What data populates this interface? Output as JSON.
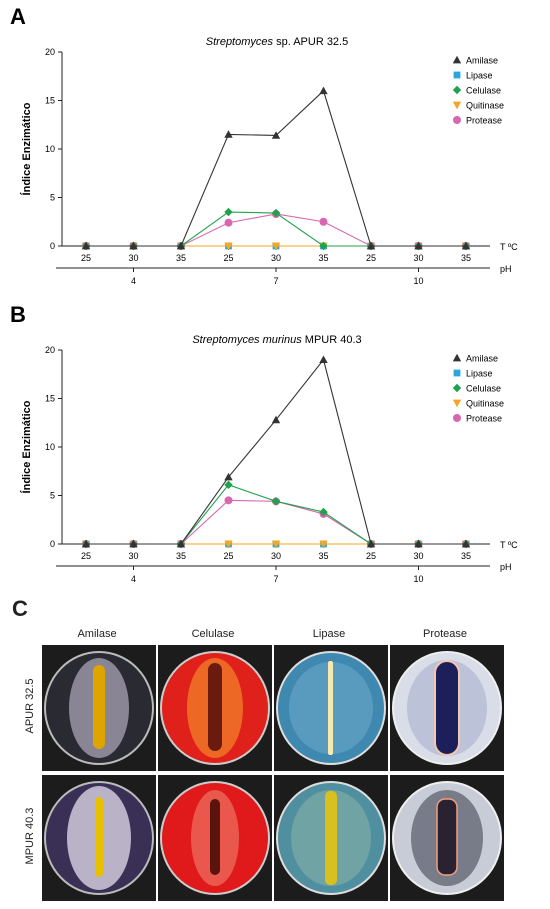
{
  "panels": [
    {
      "letter": "A",
      "title_italic": "Streptomyces",
      "title_rest": " sp. APUR 32.5",
      "ylabel": "Índice Enzimático",
      "t_label": "T ºC",
      "ph_label": "pH",
      "yticks": [
        "0",
        "5",
        "10",
        "15",
        "20"
      ],
      "ylim": [
        0,
        20
      ],
      "x_ticks": [
        "25",
        "30",
        "35",
        "25",
        "30",
        "35",
        "25",
        "30",
        "35"
      ],
      "ph_groups": [
        "4",
        "7",
        "10"
      ]
    },
    {
      "letter": "B",
      "title_italic": "Streptomyces murinus",
      "title_rest": " MPUR 40.3",
      "ylabel": "Índice Enzimático",
      "t_label": "T ºC",
      "ph_label": "pH",
      "yticks": [
        "0",
        "5",
        "10",
        "15",
        "20"
      ],
      "ylim": [
        0,
        20
      ],
      "x_ticks": [
        "25",
        "30",
        "35",
        "25",
        "30",
        "35",
        "25",
        "30",
        "35"
      ],
      "ph_groups": [
        "4",
        "7",
        "10"
      ]
    }
  ],
  "legend": [
    "Amilase",
    "Lipase",
    "Celulase",
    "Quitinase",
    "Protease"
  ],
  "colors": {
    "Amilase": "#333333",
    "Lipase": "#29a8d8",
    "Celulase": "#1fa34a",
    "Quitinase": "#f5a623",
    "Protease": "#d966b0"
  },
  "chart_data": [
    {
      "type": "line",
      "title": "Streptomyces sp. APUR 32.5",
      "ylabel": "Índice Enzimático",
      "categories": [
        "4 / 25",
        "4 / 30",
        "4 / 35",
        "7 / 25",
        "7 / 30",
        "7 / 35",
        "10 / 25",
        "10 / 30",
        "10 / 35"
      ],
      "ylim": [
        0,
        20
      ],
      "series": [
        {
          "name": "Amilase",
          "values": [
            0,
            0,
            0,
            11.5,
            11.4,
            16,
            0,
            0,
            0
          ]
        },
        {
          "name": "Lipase",
          "values": [
            0,
            0,
            0,
            0,
            0,
            0,
            0,
            0,
            0
          ]
        },
        {
          "name": "Celulase",
          "values": [
            0,
            0,
            0,
            3.5,
            3.4,
            0,
            0,
            0,
            0
          ]
        },
        {
          "name": "Quitinase",
          "values": [
            0,
            0,
            0,
            0,
            0,
            0,
            0,
            0,
            0
          ]
        },
        {
          "name": "Protease",
          "values": [
            0,
            0,
            0,
            2.4,
            3.3,
            2.5,
            0,
            0,
            0
          ]
        }
      ]
    },
    {
      "type": "line",
      "title": "Streptomyces murinus MPUR 40.3",
      "ylabel": "Índice Enzimático",
      "categories": [
        "4 / 25",
        "4 / 30",
        "4 / 35",
        "7 / 25",
        "7 / 30",
        "7 / 35",
        "10 / 25",
        "10 / 30",
        "10 / 35"
      ],
      "ylim": [
        0,
        20
      ],
      "series": [
        {
          "name": "Amilase",
          "values": [
            0,
            0,
            0,
            6.9,
            12.8,
            19,
            0,
            0,
            0
          ]
        },
        {
          "name": "Lipase",
          "values": [
            0,
            0,
            0,
            0,
            0,
            0,
            0,
            0,
            0
          ]
        },
        {
          "name": "Celulase",
          "values": [
            0,
            0,
            0,
            6.1,
            4.4,
            3.3,
            0,
            0,
            0
          ]
        },
        {
          "name": "Quitinase",
          "values": [
            0,
            0,
            0,
            0,
            0,
            0,
            0,
            0,
            0
          ]
        },
        {
          "name": "Protease",
          "values": [
            0,
            0,
            0,
            4.5,
            4.4,
            3.1,
            0,
            0,
            0
          ]
        }
      ]
    }
  ],
  "photo_panel": {
    "letter": "C",
    "columns": [
      "Amilase",
      "Celulase",
      "Lipase",
      "Protease"
    ],
    "rows": [
      "APUR 32.5",
      "MPUR 40.3"
    ]
  }
}
